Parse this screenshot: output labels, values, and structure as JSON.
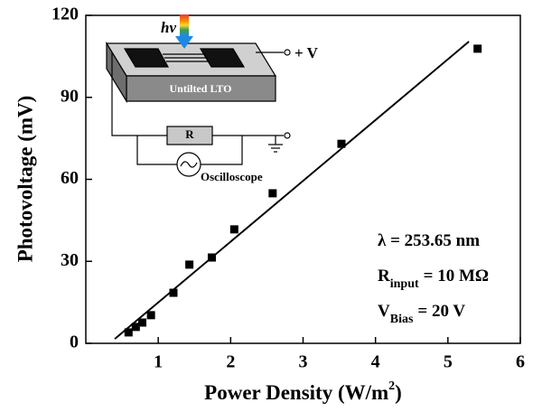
{
  "chart_data": {
    "type": "scatter",
    "x_label": {
      "text": "Power Density (W/m",
      "superscript": "2",
      "end": ")"
    },
    "y_label": "Photovoltage (mV)",
    "x": [
      0.59,
      0.69,
      0.78,
      0.9,
      1.21,
      1.43,
      1.74,
      2.05,
      2.58,
      3.53,
      5.41
    ],
    "values": [
      4,
      6,
      7.6,
      10.3,
      18.5,
      28.8,
      31.4,
      41.7,
      54.9,
      73,
      107.8
    ],
    "color": "#000000",
    "fit_line": {
      "x": [
        0.4,
        5.29
      ],
      "y": [
        1.6,
        110.4
      ]
    },
    "xlim": [
      0,
      6
    ],
    "xticks": [
      1,
      2,
      3,
      4,
      5,
      6
    ],
    "ylim": [
      0,
      120
    ],
    "yticks": [
      0,
      30,
      60,
      90,
      120
    ],
    "annotations": [
      {
        "text": "λ = 253.65 nm"
      },
      {
        "symbol": "R",
        "subscript": "input",
        "text": "= 10 MΩ"
      },
      {
        "symbol": "V",
        "subscript": "Bias",
        "text": "= 20 V"
      }
    ],
    "inset": {
      "light": "hν",
      "terminal": "+ V",
      "sample": "Untilted LTO",
      "resistor": "R",
      "meter": "Oscilloscope"
    }
  }
}
